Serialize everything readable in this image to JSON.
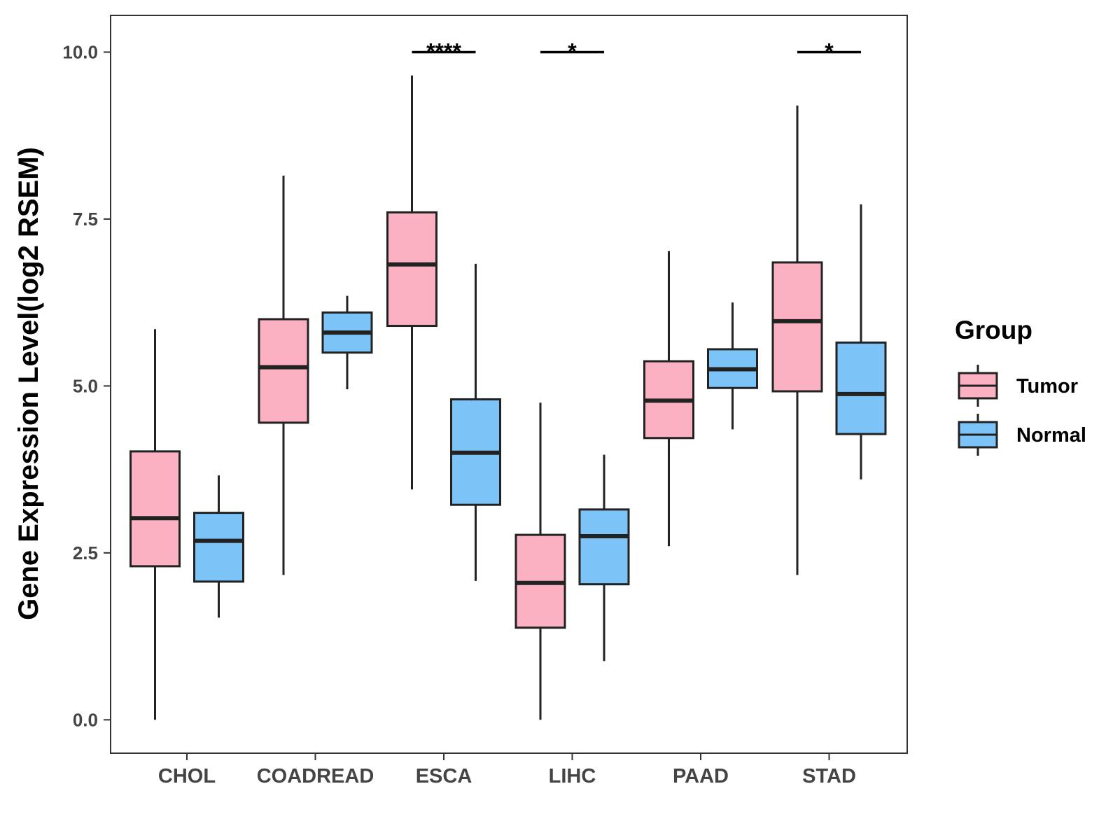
{
  "chart_data": {
    "type": "boxplot",
    "title": "",
    "xlabel": "",
    "ylabel": "Gene Expression Level(log2 RSEM)",
    "ylim": [
      -0.5,
      10.55
    ],
    "yticks": [
      0.0,
      2.5,
      5.0,
      7.5,
      10.0
    ],
    "ytick_labels": [
      "0.0",
      "2.5",
      "5.0",
      "7.5",
      "10.0"
    ],
    "grid": false,
    "categories": [
      "CHOL",
      "COADREAD",
      "ESCA",
      "LIHC",
      "PAAD",
      "STAD"
    ],
    "legend": {
      "title": "Group",
      "position": "right",
      "entries": [
        "Tumor",
        "Normal"
      ]
    },
    "series": [
      {
        "name": "Tumor",
        "color": "#FBB1C2",
        "boxes": [
          {
            "min": 0.0,
            "q1": 2.3,
            "median": 3.02,
            "q3": 4.02,
            "max": 5.85
          },
          {
            "min": 2.17,
            "q1": 4.45,
            "median": 5.28,
            "q3": 6.0,
            "max": 8.15
          },
          {
            "min": 3.45,
            "q1": 5.9,
            "median": 6.82,
            "q3": 7.6,
            "max": 9.65
          },
          {
            "min": 0.0,
            "q1": 1.38,
            "median": 2.05,
            "q3": 2.77,
            "max": 4.75
          },
          {
            "min": 2.6,
            "q1": 4.22,
            "median": 4.78,
            "q3": 5.37,
            "max": 7.02
          },
          {
            "min": 2.17,
            "q1": 4.92,
            "median": 5.97,
            "q3": 6.85,
            "max": 9.2
          }
        ]
      },
      {
        "name": "Normal",
        "color": "#7CC4F8",
        "boxes": [
          {
            "min": 1.53,
            "q1": 2.07,
            "median": 2.68,
            "q3": 3.1,
            "max": 3.66
          },
          {
            "min": 4.95,
            "q1": 5.5,
            "median": 5.8,
            "q3": 6.1,
            "max": 6.35
          },
          {
            "min": 2.08,
            "q1": 3.22,
            "median": 4.0,
            "q3": 4.8,
            "max": 6.83
          },
          {
            "min": 0.88,
            "q1": 2.03,
            "median": 2.75,
            "q3": 3.15,
            "max": 3.97
          },
          {
            "min": 4.35,
            "q1": 4.97,
            "median": 5.25,
            "q3": 5.55,
            "max": 6.25
          },
          {
            "min": 3.6,
            "q1": 4.28,
            "median": 4.88,
            "q3": 5.65,
            "max": 7.72
          }
        ]
      }
    ],
    "significance": [
      {
        "category": "ESCA",
        "label": "****",
        "y": 10.0
      },
      {
        "category": "LIHC",
        "label": "*",
        "y": 10.0
      },
      {
        "category": "STAD",
        "label": "*",
        "y": 10.0
      }
    ]
  }
}
